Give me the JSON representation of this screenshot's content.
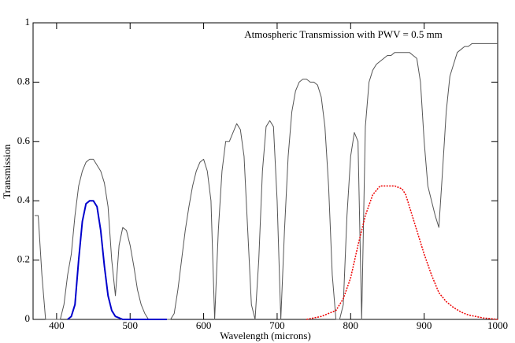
{
  "chart_data": {
    "type": "line",
    "title": "Atmospheric Transmission with PWV = 0.5 mm",
    "xlabel": "Wavelength (microns)",
    "ylabel": "Transmission",
    "xlim": [
      368,
      1000
    ],
    "ylim": [
      0,
      1
    ],
    "xticks": [
      400,
      500,
      600,
      700,
      800,
      900,
      1000
    ],
    "yticks": [
      0,
      0.2,
      0.4,
      0.6,
      0.8,
      1
    ],
    "series": [
      {
        "color": "#555555",
        "dash": false,
        "width": 1,
        "x": [
          370,
          375,
          380,
          385,
          390,
          395,
          400,
          405,
          410,
          415,
          420,
          425,
          430,
          435,
          440,
          445,
          450,
          455,
          460,
          465,
          470,
          475,
          480,
          485,
          490,
          495,
          500,
          505,
          510,
          515,
          520,
          525,
          530,
          535,
          540,
          545,
          550,
          555,
          560,
          565,
          570,
          575,
          580,
          585,
          590,
          595,
          600,
          605,
          610,
          615,
          620,
          625,
          630,
          635,
          640,
          645,
          650,
          655,
          660,
          665,
          670,
          675,
          680,
          685,
          690,
          695,
          700,
          705,
          710,
          715,
          720,
          725,
          730,
          735,
          740,
          745,
          750,
          755,
          760,
          765,
          770,
          775,
          780,
          785,
          790,
          795,
          800,
          805,
          810,
          815,
          820,
          825,
          830,
          835,
          840,
          845,
          850,
          855,
          860,
          865,
          870,
          875,
          880,
          885,
          890,
          895,
          900,
          905,
          910,
          915,
          920,
          925,
          930,
          935,
          940,
          945,
          950,
          955,
          960,
          965,
          970,
          975,
          980,
          985,
          990,
          995,
          1000
        ],
        "values": [
          0.35,
          0.35,
          0.15,
          0,
          0,
          0,
          0,
          0,
          0.05,
          0.15,
          0.22,
          0.35,
          0.45,
          0.5,
          0.53,
          0.54,
          0.54,
          0.52,
          0.5,
          0.46,
          0.38,
          0.2,
          0.08,
          0.25,
          0.31,
          0.3,
          0.25,
          0.18,
          0.1,
          0.05,
          0.02,
          0,
          0,
          0,
          0,
          0,
          0,
          0,
          0.02,
          0.1,
          0.2,
          0.3,
          0.38,
          0.45,
          0.5,
          0.53,
          0.54,
          0.5,
          0.4,
          0,
          0.3,
          0.5,
          0.6,
          0.6,
          0.63,
          0.66,
          0.64,
          0.55,
          0.3,
          0.05,
          0,
          0.2,
          0.5,
          0.65,
          0.67,
          0.65,
          0.4,
          0,
          0.3,
          0.55,
          0.7,
          0.77,
          0.8,
          0.81,
          0.81,
          0.8,
          0.8,
          0.79,
          0.75,
          0.65,
          0.45,
          0.15,
          0,
          0,
          0.05,
          0.35,
          0.55,
          0.63,
          0.6,
          0,
          0.65,
          0.8,
          0.84,
          0.86,
          0.87,
          0.88,
          0.89,
          0.89,
          0.9,
          0.9,
          0.9,
          0.9,
          0.9,
          0.89,
          0.88,
          0.8,
          0.6,
          0.45,
          0.4,
          0.35,
          0.31,
          0.5,
          0.7,
          0.82,
          0.86,
          0.9,
          0.91,
          0.92,
          0.92,
          0.93,
          0.93,
          0.93,
          0.93,
          0.93,
          0.93,
          0.93,
          0.93
        ]
      },
      {
        "color": "#0000cc",
        "dash": false,
        "width": 2,
        "x": [
          415,
          420,
          425,
          430,
          435,
          440,
          445,
          450,
          455,
          460,
          465,
          470,
          475,
          480,
          490,
          500,
          550
        ],
        "values": [
          0,
          0.01,
          0.05,
          0.2,
          0.33,
          0.39,
          0.4,
          0.4,
          0.38,
          0.3,
          0.18,
          0.08,
          0.03,
          0.01,
          0,
          0,
          0
        ]
      },
      {
        "color": "#ee0000",
        "dash": true,
        "width": 1.5,
        "x": [
          740,
          760,
          780,
          790,
          800,
          810,
          820,
          830,
          840,
          850,
          860,
          870,
          875,
          880,
          890,
          900,
          910,
          920,
          930,
          940,
          950,
          960,
          980,
          1000
        ],
        "values": [
          0,
          0.01,
          0.03,
          0.07,
          0.14,
          0.25,
          0.35,
          0.42,
          0.45,
          0.45,
          0.45,
          0.44,
          0.42,
          0.38,
          0.3,
          0.22,
          0.15,
          0.09,
          0.06,
          0.04,
          0.025,
          0.015,
          0.005,
          0
        ]
      }
    ]
  }
}
